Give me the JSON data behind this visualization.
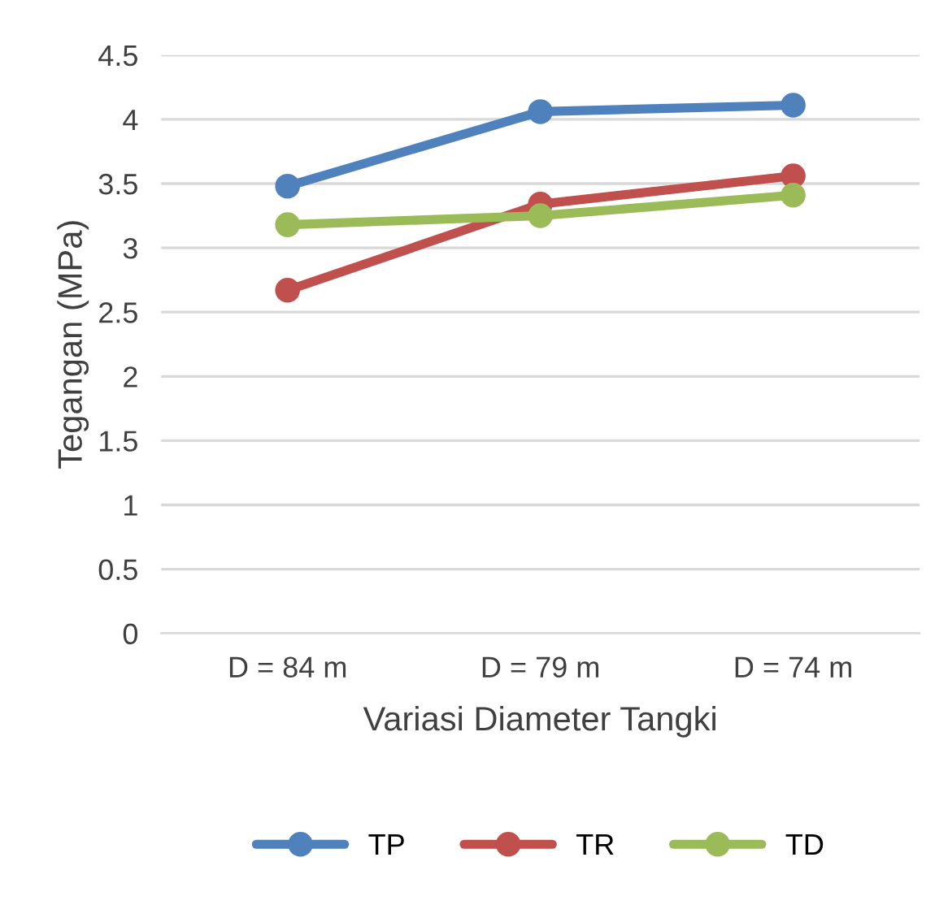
{
  "chart_data": {
    "type": "line",
    "xlabel": "Variasi Diameter Tangki",
    "ylabel": "Tegangan (MPa)",
    "categories": [
      "D = 84 m",
      "D = 79 m",
      "D = 74 m"
    ],
    "series": [
      {
        "name": "TP",
        "color": "#4f81bd",
        "values": [
          3.48,
          4.06,
          4.11
        ]
      },
      {
        "name": "TR",
        "color": "#c0504d",
        "values": [
          2.67,
          3.34,
          3.56
        ]
      },
      {
        "name": "TD",
        "color": "#9bbb59",
        "values": [
          3.18,
          3.25,
          3.41
        ]
      }
    ],
    "ylim": [
      0,
      4.5
    ],
    "yticks": [
      0,
      0.5,
      1,
      1.5,
      2,
      2.5,
      3,
      3.5,
      4,
      4.5
    ],
    "grid": "y",
    "legend": "bottom",
    "marker": "circle",
    "line_style": "solid"
  }
}
